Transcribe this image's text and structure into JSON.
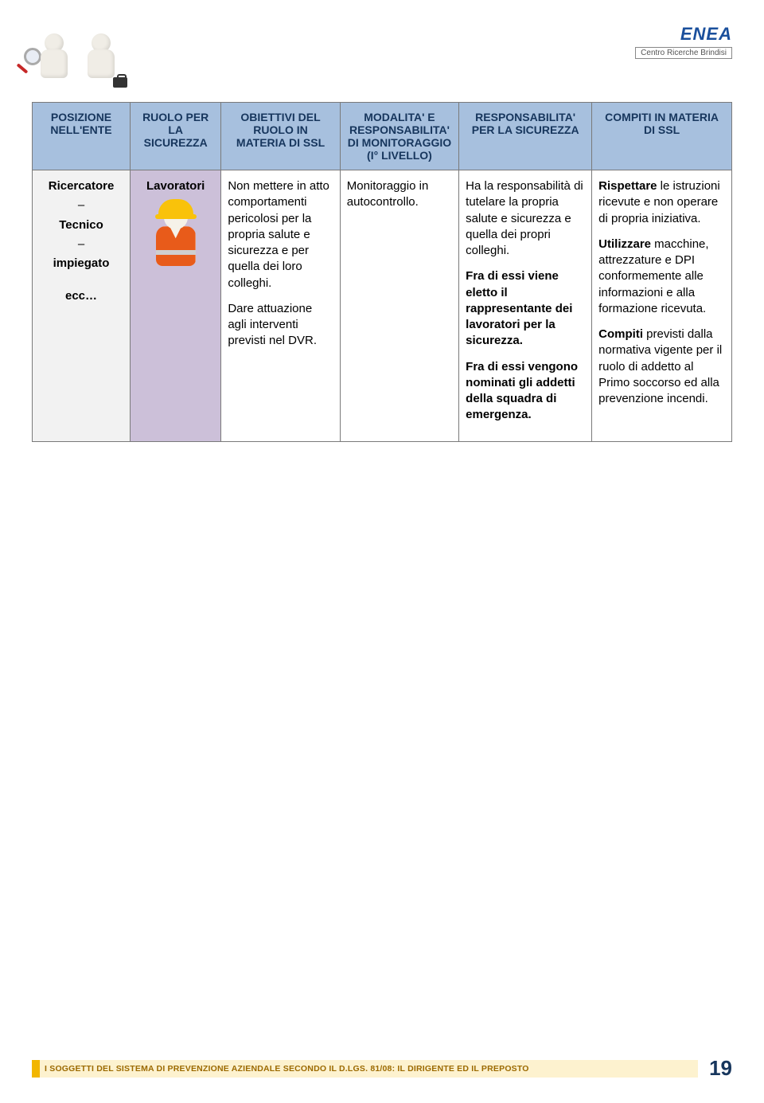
{
  "logo": {
    "name": "ENEA",
    "color": "#1a4f9c",
    "fontsize": 22,
    "subtitle": "Centro Ricerche Brindisi"
  },
  "table": {
    "header_bg": "#a7c0de",
    "header_color": "#17365d",
    "border_color": "#7a7a7a",
    "columns": [
      "POSIZIONE NELL'ENTE",
      "RUOLO PER LA SICUREZZA",
      "OBIETTIVI DEL RUOLO IN MATERIA DI SSL",
      "MODALITA' E RESPONSABILITA' DI MONITORAGGIO (I° LIVELLO)",
      "RESPONSABILITA' PER LA SICUREZZA",
      "COMPITI IN MATERIA DI SSL"
    ],
    "row": {
      "posizione_bg": "#f2f2f2",
      "posizione_lines": [
        "Ricercatore",
        "–",
        "Tecnico",
        "–",
        "impiegato",
        "",
        "ecc…"
      ],
      "ruolo_bg": "#ccc0d9",
      "ruolo_label": "Lavoratori",
      "obiettivi": [
        "Non mettere in atto comportamenti pericolosi per la propria salute e sicurezza e per quella dei loro colleghi.",
        "Dare attuazione agli interventi previsti nel DVR."
      ],
      "monitoraggio": "Monitoraggio in autocontrollo.",
      "responsabilita": {
        "p1": "Ha la responsabilità di tutelare la propria salute e sicurezza e quella dei propri colleghi.",
        "p2_pre": "Fra di essi viene eletto il rappresentante dei lavoratori per la sicurezza.",
        "p3_pre": "Fra di essi vengono nominati gli addetti della squadra di emergenza."
      },
      "compiti": {
        "p1_bold": "Rispettare",
        "p1_rest": " le istruzioni ricevute e non operare di propria iniziativa.",
        "p2_bold": "Utilizzare",
        "p2_rest": " macchine, attrezzature e DPI conformemente alle informazioni e alla formazione ricevuta.",
        "p3_bold": "Compiti",
        "p3_rest": " previsti dalla normativa vigente per il ruolo di addetto al Primo soccorso ed alla prevenzione incendi."
      }
    }
  },
  "footer": {
    "yellow": "#f2b600",
    "bar_bg": "#fdf2cf",
    "text_color": "#9c6a00",
    "text": "I SOGGETTI DEL SISTEMA DI PREVENZIONE AZIENDALE SECONDO IL D.LGS. 81/08: IL DIRIGENTE ED IL PREPOSTO",
    "page_number": "19",
    "page_number_color": "#17365d"
  }
}
